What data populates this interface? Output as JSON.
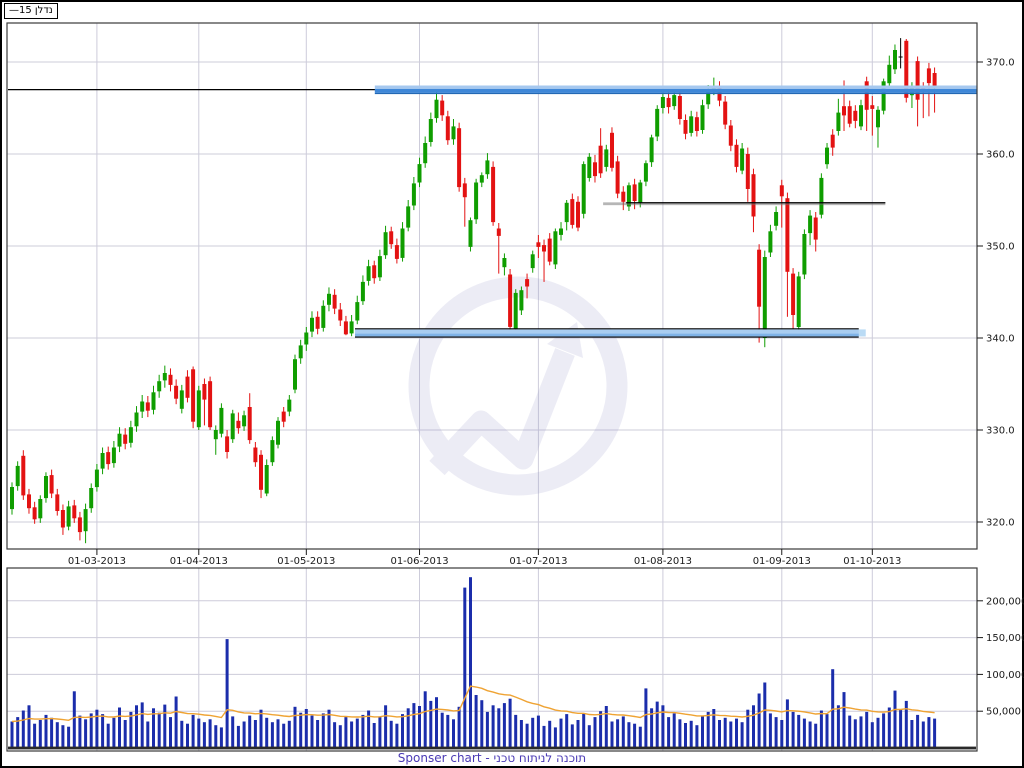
{
  "legend": {
    "line_sample": "—",
    "label": "נדלן 15"
  },
  "caption": {
    "text": "Sponser chart - תוכנה לניתוח טכני"
  },
  "colors": {
    "up": "#0f9d00",
    "down": "#e31212",
    "neutral_candle": "#000000",
    "volume_bar": "#1b2dab",
    "volume_ma": "#efa333",
    "grid": "#cdccda",
    "panel_border": "#3a3a3a",
    "axis_text": "#1a1a1a",
    "annotation_black": "#000000",
    "resistance_blue": "#3e87d8",
    "resistance_blue_light": "#a6c8ef",
    "resistance_blue_dark": "#2268b4",
    "support_band_fill": "#a9cdf1",
    "support_band_stripe": "#7fb3e8",
    "support_band_stub": "#badbf5",
    "watermark": "#8d8dc4",
    "caption_text": "#4a3ab5",
    "volume_baseline": "#2a2a2a"
  },
  "chart_data": {
    "type": "candlestick+volume",
    "title": "נדלן 15",
    "legend_position": "top-left",
    "grid": true,
    "price_axis": {
      "side": "right",
      "ticks": [
        370,
        360,
        350,
        340,
        330,
        320
      ],
      "tick_labels": [
        "370.0",
        "360.0",
        "350.0",
        "340.0",
        "330.0",
        "320.0"
      ],
      "visible_range": [
        317.3,
        374.2
      ]
    },
    "volume_axis": {
      "side": "right",
      "ticks_thousands": [
        200,
        150,
        100,
        50
      ],
      "tick_labels": [
        "200,000",
        "150,000",
        "100,000",
        "50,000"
      ],
      "visible_range_thousands": [
        0,
        244
      ]
    },
    "x_ticks": [
      {
        "label": "01-03-2013",
        "index": 15
      },
      {
        "label": "01-04-2013",
        "index": 33
      },
      {
        "label": "01-05-2013",
        "index": 52
      },
      {
        "label": "01-06-2013",
        "index": 72
      },
      {
        "label": "01-07-2013",
        "index": 93
      },
      {
        "label": "01-08-2013",
        "index": 115
      },
      {
        "label": "01-09-2013",
        "index": 136
      },
      {
        "label": "01-10-2013",
        "index": 152
      }
    ],
    "annotations": {
      "resistance_line": {
        "price": 367.0,
        "full_width": true
      },
      "resistance_highlight": {
        "price": 367.0,
        "start_index": 64.1,
        "to_right_edge": true
      },
      "support_band": {
        "price_top": 341.0,
        "price_bottom": 340.1,
        "start_index": 60.6,
        "end_index": 149.6
      },
      "mid_support_line": {
        "price": 354.7,
        "start_index": 108.5,
        "end_index": 154.3
      },
      "volume_ma": {
        "type": "ema",
        "alpha": 0.1
      }
    },
    "candles_ohlc": [
      [
        321.4,
        324.3,
        320.8,
        323.8
      ],
      [
        323.9,
        326.6,
        323.4,
        326.1
      ],
      [
        327.2,
        327.8,
        322.4,
        322.9
      ],
      [
        323.0,
        323.6,
        320.9,
        321.5
      ],
      [
        321.6,
        322.2,
        319.8,
        320.3
      ],
      [
        320.4,
        322.9,
        319.9,
        322.5
      ],
      [
        322.6,
        325.4,
        322.1,
        325.0
      ],
      [
        325.1,
        325.7,
        322.6,
        323.1
      ],
      [
        323.0,
        323.6,
        320.7,
        321.2
      ],
      [
        321.3,
        321.9,
        318.6,
        319.4
      ],
      [
        319.5,
        322.3,
        319.1,
        321.7
      ],
      [
        321.8,
        322.4,
        319.9,
        320.4
      ],
      [
        320.5,
        321.1,
        318.0,
        318.9
      ],
      [
        319.0,
        322.0,
        317.7,
        321.4
      ],
      [
        321.5,
        324.2,
        321.0,
        323.7
      ],
      [
        323.8,
        326.3,
        323.3,
        325.7
      ],
      [
        325.8,
        328.1,
        325.2,
        327.5
      ],
      [
        327.6,
        328.2,
        325.7,
        326.3
      ],
      [
        326.4,
        328.8,
        325.9,
        328.1
      ],
      [
        328.2,
        330.3,
        327.6,
        329.6
      ],
      [
        329.5,
        330.2,
        327.9,
        328.5
      ],
      [
        328.6,
        331.0,
        328.1,
        330.3
      ],
      [
        330.4,
        332.6,
        329.8,
        331.9
      ],
      [
        332.0,
        333.8,
        331.3,
        333.1
      ],
      [
        333.0,
        333.7,
        331.4,
        332.1
      ],
      [
        332.2,
        334.8,
        331.7,
        334.1
      ],
      [
        334.2,
        336.0,
        333.5,
        335.3
      ],
      [
        335.4,
        337.0,
        334.6,
        336.2
      ],
      [
        336.0,
        336.7,
        334.2,
        334.9
      ],
      [
        334.8,
        335.5,
        332.8,
        333.4
      ],
      [
        332.3,
        334.9,
        331.8,
        334.3
      ],
      [
        335.8,
        336.5,
        333.0,
        333.5
      ],
      [
        336.6,
        336.9,
        330.2,
        330.9
      ],
      [
        330.3,
        334.8,
        330.0,
        334.3
      ],
      [
        335.0,
        335.6,
        330.5,
        333.3
      ],
      [
        335.3,
        335.8,
        330.0,
        330.3
      ],
      [
        329.0,
        330.5,
        327.3,
        330.0
      ],
      [
        329.6,
        332.9,
        329.2,
        332.4
      ],
      [
        329.3,
        330.0,
        326.9,
        327.6
      ],
      [
        329.0,
        332.2,
        328.6,
        331.8
      ],
      [
        331.0,
        331.9,
        329.6,
        330.2
      ],
      [
        330.4,
        332.1,
        329.9,
        331.6
      ],
      [
        332.5,
        334.0,
        328.5,
        328.9
      ],
      [
        328.1,
        328.7,
        326.0,
        326.5
      ],
      [
        327.3,
        327.8,
        322.6,
        323.5
      ],
      [
        323.1,
        326.8,
        322.8,
        326.2
      ],
      [
        326.5,
        329.3,
        326.1,
        328.9
      ],
      [
        328.4,
        331.4,
        328.0,
        331.0
      ],
      [
        332.0,
        332.5,
        330.3,
        330.9
      ],
      [
        332.0,
        333.8,
        331.5,
        333.3
      ],
      [
        334.4,
        338.2,
        334.0,
        337.7
      ],
      [
        337.8,
        339.8,
        337.2,
        339.2
      ],
      [
        339.3,
        341.2,
        338.6,
        340.6
      ],
      [
        340.7,
        342.9,
        340.1,
        342.2
      ],
      [
        342.3,
        342.9,
        340.4,
        341.0
      ],
      [
        341.1,
        344.1,
        340.7,
        343.5
      ],
      [
        343.6,
        345.5,
        342.9,
        344.8
      ],
      [
        344.7,
        345.3,
        342.6,
        343.2
      ],
      [
        343.1,
        343.8,
        341.3,
        341.9
      ],
      [
        341.8,
        342.4,
        340.3,
        340.4
      ],
      [
        340.5,
        342.5,
        340.2,
        341.8
      ],
      [
        341.9,
        344.6,
        341.5,
        343.9
      ],
      [
        344.0,
        346.8,
        343.6,
        346.1
      ],
      [
        346.2,
        348.5,
        345.7,
        347.8
      ],
      [
        347.9,
        348.4,
        345.9,
        346.5
      ],
      [
        346.6,
        349.6,
        346.2,
        348.9
      ],
      [
        349.0,
        352.2,
        348.6,
        351.5
      ],
      [
        351.6,
        352.1,
        349.7,
        350.2
      ],
      [
        350.1,
        350.8,
        348.1,
        348.6
      ],
      [
        348.7,
        352.6,
        348.3,
        351.9
      ],
      [
        352.0,
        355.0,
        351.6,
        354.3
      ],
      [
        354.4,
        357.5,
        353.9,
        356.8
      ],
      [
        356.9,
        359.6,
        356.4,
        358.9
      ],
      [
        359.0,
        361.9,
        358.5,
        361.2
      ],
      [
        361.3,
        364.5,
        360.8,
        363.8
      ],
      [
        363.9,
        366.8,
        363.4,
        365.9
      ],
      [
        365.8,
        366.4,
        363.6,
        364.2
      ],
      [
        364.1,
        364.7,
        361.0,
        361.5
      ],
      [
        361.6,
        363.8,
        361.0,
        363.0
      ],
      [
        362.8,
        363.4,
        355.9,
        356.4
      ],
      [
        356.8,
        357.4,
        352.1,
        355.3
      ],
      [
        349.9,
        353.1,
        349.4,
        352.8
      ],
      [
        352.9,
        357.3,
        352.4,
        356.9
      ],
      [
        356.9,
        358.0,
        356.4,
        357.7
      ],
      [
        357.8,
        360.1,
        357.3,
        359.3
      ],
      [
        358.6,
        359.2,
        352.2,
        352.6
      ],
      [
        351.9,
        352.5,
        347.0,
        351.1
      ],
      [
        347.7,
        349.2,
        346.8,
        348.7
      ],
      [
        346.9,
        347.5,
        340.9,
        341.2
      ],
      [
        341.0,
        345.3,
        340.7,
        344.9
      ],
      [
        343.0,
        345.6,
        342.5,
        345.2
      ],
      [
        346.4,
        347.0,
        344.3,
        345.6
      ],
      [
        347.6,
        349.5,
        347.1,
        349.1
      ],
      [
        350.4,
        351.2,
        348.7,
        349.9
      ],
      [
        350.1,
        350.7,
        346.1,
        349.4
      ],
      [
        350.8,
        351.4,
        347.9,
        348.3
      ],
      [
        348.0,
        351.9,
        347.5,
        351.6
      ],
      [
        351.2,
        352.6,
        350.6,
        351.9
      ],
      [
        352.6,
        355.0,
        351.7,
        354.7
      ],
      [
        355.1,
        355.7,
        351.9,
        352.3
      ],
      [
        354.8,
        355.4,
        351.6,
        352.0
      ],
      [
        353.5,
        359.2,
        353.0,
        358.9
      ],
      [
        357.4,
        360.1,
        357.0,
        359.7
      ],
      [
        359.1,
        359.9,
        356.9,
        357.6
      ],
      [
        360.9,
        362.8,
        357.4,
        357.9
      ],
      [
        358.6,
        361.0,
        358.1,
        360.5
      ],
      [
        362.3,
        362.9,
        358.1,
        358.5
      ],
      [
        359.2,
        359.8,
        355.2,
        355.7
      ],
      [
        355.9,
        356.5,
        353.9,
        354.8
      ],
      [
        354.3,
        356.9,
        353.8,
        356.6
      ],
      [
        356.7,
        357.3,
        354.0,
        354.9
      ],
      [
        354.7,
        357.2,
        354.2,
        356.9
      ],
      [
        357.0,
        359.3,
        356.5,
        359.0
      ],
      [
        359.1,
        362.1,
        358.6,
        361.8
      ],
      [
        361.9,
        365.3,
        361.4,
        364.9
      ],
      [
        365.0,
        367.0,
        364.4,
        366.2
      ],
      [
        366.1,
        366.7,
        364.4,
        365.1
      ],
      [
        365.2,
        367.0,
        364.8,
        366.4
      ],
      [
        366.3,
        366.9,
        363.2,
        363.8
      ],
      [
        363.7,
        364.3,
        361.6,
        362.2
      ],
      [
        362.3,
        364.7,
        361.9,
        364.1
      ],
      [
        364.0,
        364.6,
        361.9,
        362.5
      ],
      [
        362.6,
        365.9,
        362.2,
        365.3
      ],
      [
        365.4,
        367.5,
        364.9,
        366.9
      ],
      [
        367.0,
        368.3,
        366.4,
        367.4
      ],
      [
        367.3,
        367.9,
        365.2,
        365.8
      ],
      [
        365.7,
        366.3,
        362.7,
        363.2
      ],
      [
        363.1,
        363.7,
        360.3,
        360.9
      ],
      [
        361.0,
        361.6,
        358.0,
        358.6
      ],
      [
        358.2,
        361.2,
        357.8,
        360.6
      ],
      [
        360.0,
        360.7,
        354.8,
        356.2
      ],
      [
        357.8,
        358.4,
        351.5,
        353.2
      ],
      [
        349.6,
        350.2,
        339.5,
        343.4
      ],
      [
        340.0,
        349.5,
        339.0,
        348.8
      ],
      [
        349.3,
        352.3,
        348.8,
        351.6
      ],
      [
        352.2,
        354.3,
        351.7,
        353.7
      ],
      [
        356.6,
        357.2,
        352.0,
        355.4
      ],
      [
        355.2,
        355.8,
        342.3,
        347.2
      ],
      [
        347.0,
        347.6,
        341.0,
        342.5
      ],
      [
        341.2,
        347.2,
        340.7,
        346.7
      ],
      [
        346.9,
        351.8,
        346.4,
        351.3
      ],
      [
        351.4,
        353.9,
        350.1,
        353.3
      ],
      [
        353.1,
        353.7,
        349.4,
        350.7
      ],
      [
        353.4,
        357.9,
        353.0,
        357.4
      ],
      [
        358.9,
        361.2,
        358.4,
        360.7
      ],
      [
        362.1,
        362.7,
        359.8,
        360.7
      ],
      [
        362.5,
        366.0,
        362.0,
        364.5
      ],
      [
        365.2,
        368.0,
        362.5,
        364.2
      ],
      [
        365.2,
        365.8,
        362.9,
        363.3
      ],
      [
        364.7,
        365.3,
        362.8,
        363.6
      ],
      [
        363.0,
        365.9,
        362.6,
        365.3
      ],
      [
        367.9,
        368.4,
        362.5,
        364.8
      ],
      [
        365.3,
        366.3,
        362.0,
        364.9
      ],
      [
        362.9,
        365.2,
        360.7,
        364.8
      ],
      [
        364.7,
        368.2,
        364.3,
        367.9
      ],
      [
        367.7,
        370.7,
        367.2,
        369.7
      ],
      [
        369.2,
        371.9,
        368.7,
        371.3
      ],
      [
        370.6,
        372.6,
        369.3,
        370.6
      ],
      [
        372.3,
        372.5,
        365.6,
        366.1
      ],
      [
        366.4,
        367.8,
        365.0,
        367.2
      ],
      [
        370.1,
        370.6,
        363.0,
        365.9
      ],
      [
        367.2,
        367.8,
        363.9,
        366.8
      ],
      [
        369.3,
        369.9,
        364.1,
        367.7
      ],
      [
        368.8,
        369.4,
        364.5,
        367.4
      ]
    ],
    "volumes_thousands": [
      36,
      42,
      51,
      58,
      33,
      38,
      45,
      41,
      35,
      31,
      29,
      77,
      44,
      39,
      47,
      52,
      46,
      33,
      41,
      55,
      38,
      49,
      58,
      62,
      36,
      54,
      48,
      59,
      42,
      70,
      37,
      33,
      45,
      40,
      35,
      39,
      31,
      28,
      148,
      43,
      30,
      36,
      44,
      38,
      52,
      41,
      35,
      39,
      33,
      37,
      56,
      48,
      53,
      44,
      38,
      47,
      52,
      35,
      31,
      42,
      36,
      40,
      45,
      51,
      34,
      43,
      58,
      37,
      33,
      46,
      54,
      61,
      57,
      77,
      64,
      69,
      48,
      45,
      39,
      56,
      218,
      232,
      72,
      65,
      49,
      58,
      54,
      61,
      67,
      45,
      38,
      33,
      41,
      44,
      30,
      37,
      28,
      40,
      46,
      32,
      38,
      47,
      31,
      42,
      50,
      57,
      36,
      39,
      43,
      35,
      33,
      29,
      81,
      54,
      63,
      58,
      42,
      47,
      39,
      34,
      37,
      31,
      44,
      49,
      53,
      38,
      41,
      36,
      40,
      35,
      52,
      58,
      74,
      89,
      47,
      42,
      38,
      66,
      49,
      45,
      40,
      36,
      33,
      51,
      46,
      107,
      58,
      76,
      44,
      39,
      43,
      49,
      35,
      41,
      47,
      55,
      78,
      52,
      64,
      38,
      45,
      36,
      42,
      40
    ]
  }
}
